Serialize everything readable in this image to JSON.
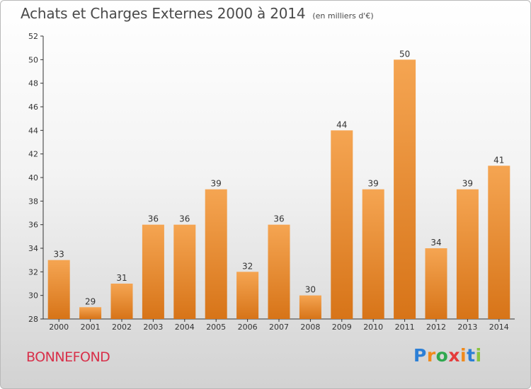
{
  "header": {
    "title": "Achats et Charges Externes 2000 à 2014",
    "subtitle": "(en milliers d'€)"
  },
  "footer": {
    "town": "BONNEFOND",
    "logo_letters": [
      "P",
      "r",
      "o",
      "x",
      "i",
      "t",
      "i"
    ],
    "logo_colors": [
      "#2c7fd6",
      "#f08a1c",
      "#2fa84f",
      "#e53b3b",
      "#f08a1c",
      "#2c7fd6",
      "#8ac33f"
    ]
  },
  "chart_data": {
    "type": "bar",
    "categories": [
      "2000",
      "2001",
      "2002",
      "2003",
      "2004",
      "2005",
      "2006",
      "2007",
      "2008",
      "2009",
      "2010",
      "2011",
      "2012",
      "2013",
      "2014"
    ],
    "values": [
      33,
      29,
      31,
      36,
      36,
      39,
      32,
      36,
      30,
      44,
      39,
      50,
      34,
      39,
      41
    ],
    "title": "Achats et Charges Externes 2000 à 2014",
    "xlabel": "",
    "ylabel": "",
    "ylim": [
      28,
      52
    ],
    "yticks": [
      28,
      30,
      32,
      34,
      36,
      38,
      40,
      42,
      44,
      46,
      48,
      50,
      52
    ],
    "grid": false,
    "bar_color": "#f0922f"
  }
}
